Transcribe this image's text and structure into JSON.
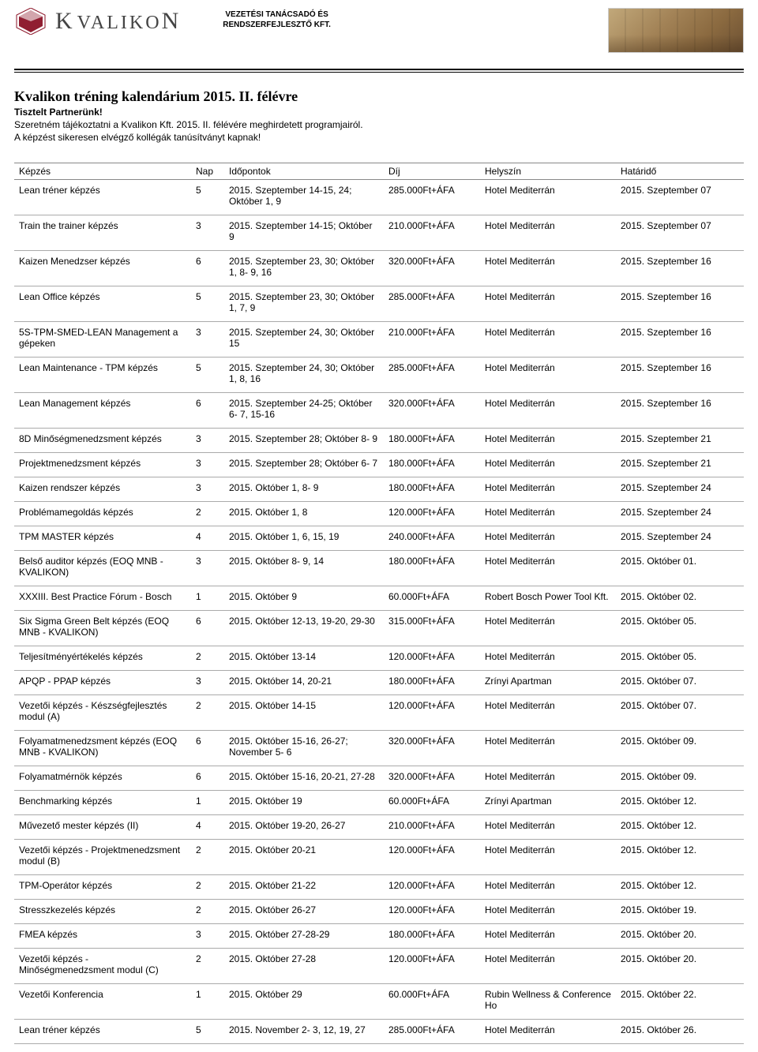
{
  "header": {
    "company_name_html": "KVALIKON",
    "tagline_line1": "VEZETÉSI TANÁCSADÓ ÉS",
    "tagline_line2": "RENDSZERFEJLESZTŐ KFT.",
    "logo_color": "#8a1226"
  },
  "intro": {
    "title": "Kvalikon tréning kalendárium 2015. II. félévre",
    "greeting": "Tisztelt Partnerünk!",
    "line1": "Szeretném tájékoztatni a Kvalikon Kft. 2015. II. félévére meghirdetett programjairól.",
    "line2": "A képzést sikeresen elvégző kollégák tanúsítványt kapnak!"
  },
  "table": {
    "columns": [
      "Képzés",
      "Nap",
      "Időpontok",
      "Díj",
      "Helyszín",
      "Határidő"
    ],
    "rows": [
      [
        "Lean tréner képzés",
        "5",
        "2015. Szeptember 14-15, 24; Október  1, 9",
        "285.000Ft+ÁFA",
        "Hotel Mediterrán",
        "2015. Szeptember 07"
      ],
      [
        "Train the trainer képzés",
        "3",
        "2015. Szeptember 14-15; Október  9",
        "210.000Ft+ÁFA",
        "Hotel Mediterrán",
        "2015. Szeptember 07"
      ],
      [
        "Kaizen Menedzser képzés",
        "6",
        "2015. Szeptember 23, 30; Október  1,  8- 9, 16",
        "320.000Ft+ÁFA",
        "Hotel Mediterrán",
        "2015. Szeptember 16"
      ],
      [
        "Lean Office képzés",
        "5",
        "2015. Szeptember 23, 30; Október  1, 7, 9",
        "285.000Ft+ÁFA",
        "Hotel Mediterrán",
        "2015. Szeptember 16"
      ],
      [
        "5S-TPM-SMED-LEAN Management a gépeken",
        "3",
        "2015. Szeptember 24, 30; Október 15",
        "210.000Ft+ÁFA",
        "Hotel Mediterrán",
        "2015. Szeptember 16"
      ],
      [
        "Lean Maintenance - TPM képzés",
        "5",
        "2015. Szeptember 24, 30; Október  1, 8, 16",
        "285.000Ft+ÁFA",
        "Hotel Mediterrán",
        "2015. Szeptember 16"
      ],
      [
        "Lean Management képzés",
        "6",
        "2015. Szeptember 24-25; Október  6- 7, 15-16",
        "320.000Ft+ÁFA",
        "Hotel Mediterrán",
        "2015. Szeptember 16"
      ],
      [
        "8D Minőségmenedzsment képzés",
        "3",
        "2015. Szeptember 28; Október  8- 9",
        "180.000Ft+ÁFA",
        "Hotel Mediterrán",
        "2015. Szeptember 21"
      ],
      [
        "Projektmenedzsment képzés",
        "3",
        "2015. Szeptember 28; Október  6- 7",
        "180.000Ft+ÁFA",
        "Hotel Mediterrán",
        "2015. Szeptember 21"
      ],
      [
        "Kaizen rendszer képzés",
        "3",
        "2015. Október  1,  8- 9",
        "180.000Ft+ÁFA",
        "Hotel Mediterrán",
        "2015. Szeptember 24"
      ],
      [
        "Problémamegoldás képzés",
        "2",
        "2015. Október  1,  8",
        "120.000Ft+ÁFA",
        "Hotel Mediterrán",
        "2015. Szeptember 24"
      ],
      [
        "TPM MASTER képzés",
        "4",
        "2015. Október  1,  6, 15, 19",
        "240.000Ft+ÁFA",
        "Hotel Mediterrán",
        "2015. Szeptember 24"
      ],
      [
        "Belső auditor képzés (EOQ MNB - KVALIKON)",
        "3",
        "2015. Október  8- 9, 14",
        "180.000Ft+ÁFA",
        "Hotel Mediterrán",
        "2015. Október 01."
      ],
      [
        "XXXIII. Best Practice Fórum - Bosch",
        "1",
        "2015. Október  9",
        "60.000Ft+ÁFA",
        "Robert Bosch Power Tool Kft.",
        "2015. Október 02."
      ],
      [
        "Six Sigma Green Belt képzés (EOQ MNB - KVALIKON)",
        "6",
        "2015. Október 12-13, 19-20, 29-30",
        "315.000Ft+ÁFA",
        "Hotel Mediterrán",
        "2015. Október 05."
      ],
      [
        "Teljesítményértékelés képzés",
        "2",
        "2015. Október 13-14",
        "120.000Ft+ÁFA",
        "Hotel Mediterrán",
        "2015. Október 05."
      ],
      [
        "APQP - PPAP képzés",
        "3",
        "2015. Október 14, 20-21",
        "180.000Ft+ÁFA",
        "Zrínyi Apartman",
        "2015. Október 07."
      ],
      [
        "Vezetői képzés - Készségfejlesztés modul (A)",
        "2",
        "2015. Október 14-15",
        "120.000Ft+ÁFA",
        "Hotel Mediterrán",
        "2015. Október 07."
      ],
      [
        "Folyamatmenedzsment képzés (EOQ MNB - KVALIKON)",
        "6",
        "2015. Október 15-16, 26-27; November  5- 6",
        "320.000Ft+ÁFA",
        "Hotel Mediterrán",
        "2015. Október 09."
      ],
      [
        "Folyamatmérnök képzés",
        "6",
        "2015. Október 15-16, 20-21, 27-28",
        "320.000Ft+ÁFA",
        "Hotel Mediterrán",
        "2015. Október 09."
      ],
      [
        "Benchmarking képzés",
        "1",
        "2015. Október 19",
        "60.000Ft+ÁFA",
        "Zrínyi Apartman",
        "2015. Október 12."
      ],
      [
        "Művezető mester képzés (II)",
        "4",
        "2015. Október 19-20, 26-27",
        "210.000Ft+ÁFA",
        "Hotel Mediterrán",
        "2015. Október 12."
      ],
      [
        "Vezetői képzés - Projektmenedzsment modul (B)",
        "2",
        "2015. Október 20-21",
        "120.000Ft+ÁFA",
        "Hotel Mediterrán",
        "2015. Október 12."
      ],
      [
        "TPM-Operátor képzés",
        "2",
        "2015. Október 21-22",
        "120.000Ft+ÁFA",
        "Hotel Mediterrán",
        "2015. Október 12."
      ],
      [
        "Stresszkezelés képzés",
        "2",
        "2015. Október 26-27",
        "120.000Ft+ÁFA",
        "Hotel Mediterrán",
        "2015. Október 19."
      ],
      [
        "FMEA képzés",
        "3",
        "2015. Október 27-28-29",
        "180.000Ft+ÁFA",
        "Hotel Mediterrán",
        "2015. Október 20."
      ],
      [
        "Vezetői képzés - Minőségmenedzsment modul (C)",
        "2",
        "2015. Október 27-28",
        "120.000Ft+ÁFA",
        "Hotel Mediterrán",
        "2015. Október 20."
      ],
      [
        "Vezetői Konferencia",
        "1",
        "2015. Október 29",
        "60.000Ft+ÁFA",
        "Rubin Wellness & Conference Ho",
        "2015. Október 22."
      ],
      [
        "Lean tréner képzés",
        "5",
        "2015. November  2- 3, 12, 19, 27",
        "285.000Ft+ÁFA",
        "Hotel Mediterrán",
        "2015. Október 26."
      ]
    ]
  }
}
